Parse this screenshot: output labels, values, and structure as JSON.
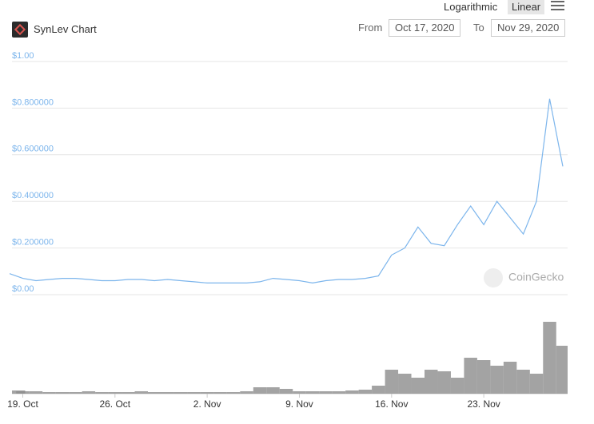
{
  "header": {
    "title": "SynLev Chart",
    "scale_options": [
      "Logarithmic",
      "Linear"
    ],
    "from_label": "From",
    "from_date": "Oct 17, 2020",
    "to_label": "To",
    "to_date": "Nov 29, 2020"
  },
  "watermark": "CoinGecko",
  "chart_data": {
    "type": "line",
    "x": [
      "2020-10-18",
      "2020-10-19",
      "2020-10-20",
      "2020-10-21",
      "2020-10-22",
      "2020-10-23",
      "2020-10-24",
      "2020-10-25",
      "2020-10-26",
      "2020-10-27",
      "2020-10-28",
      "2020-10-29",
      "2020-10-30",
      "2020-10-31",
      "2020-11-01",
      "2020-11-02",
      "2020-11-03",
      "2020-11-04",
      "2020-11-05",
      "2020-11-06",
      "2020-11-07",
      "2020-11-08",
      "2020-11-09",
      "2020-11-10",
      "2020-11-11",
      "2020-11-12",
      "2020-11-13",
      "2020-11-14",
      "2020-11-15",
      "2020-11-16",
      "2020-11-17",
      "2020-11-18",
      "2020-11-19",
      "2020-11-20",
      "2020-11-21",
      "2020-11-22",
      "2020-11-23",
      "2020-11-24",
      "2020-11-25",
      "2020-11-26",
      "2020-11-27",
      "2020-11-28",
      "2020-11-29"
    ],
    "series": [
      {
        "color": "#7cb5ec",
        "values": [
          0.09,
          0.07,
          0.06,
          0.065,
          0.07,
          0.07,
          0.065,
          0.06,
          0.06,
          0.065,
          0.065,
          0.06,
          0.065,
          0.06,
          0.055,
          0.05,
          0.05,
          0.05,
          0.05,
          0.055,
          0.07,
          0.065,
          0.06,
          0.05,
          0.06,
          0.065,
          0.065,
          0.07,
          0.08,
          0.17,
          0.2,
          0.29,
          0.22,
          0.21,
          0.3,
          0.38,
          0.3,
          0.4,
          0.33,
          0.26,
          0.4,
          0.84,
          0.55
        ]
      },
      {
        "type": "bar",
        "axis": "y2",
        "color": "#8c8c8c",
        "values": [
          4,
          3,
          3,
          2,
          2,
          2,
          3,
          2,
          2,
          2,
          3,
          2,
          2,
          2,
          2,
          2,
          2,
          2,
          3,
          8,
          8,
          6,
          3,
          3,
          3,
          3,
          4,
          5,
          10,
          30,
          25,
          20,
          30,
          28,
          20,
          45,
          42,
          35,
          40,
          30,
          25,
          90,
          60
        ]
      }
    ],
    "xlim": [
      "2020-10-18",
      "2020-11-29"
    ],
    "xticks": [
      {
        "value": "2020-10-19",
        "label": "19. Oct"
      },
      {
        "value": "2020-10-26",
        "label": "26. Oct"
      },
      {
        "value": "2020-11-02",
        "label": "2. Nov"
      },
      {
        "value": "2020-11-09",
        "label": "9. Nov"
      },
      {
        "value": "2020-11-16",
        "label": "16. Nov"
      },
      {
        "value": "2020-11-23",
        "label": "23. Nov"
      }
    ],
    "ylim": [
      0,
      1
    ],
    "yticks": [
      {
        "value": 1,
        "label": "$1.00"
      },
      {
        "value": 0.8,
        "label": "$0.800000"
      },
      {
        "value": 0.6,
        "label": "$0.600000"
      },
      {
        "value": 0.4,
        "label": "$0.400000"
      },
      {
        "value": 0.2,
        "label": "$0.200000"
      },
      {
        "value": 0,
        "label": "$0.00"
      }
    ],
    "y2lim": [
      0,
      100
    ],
    "grid": true
  }
}
